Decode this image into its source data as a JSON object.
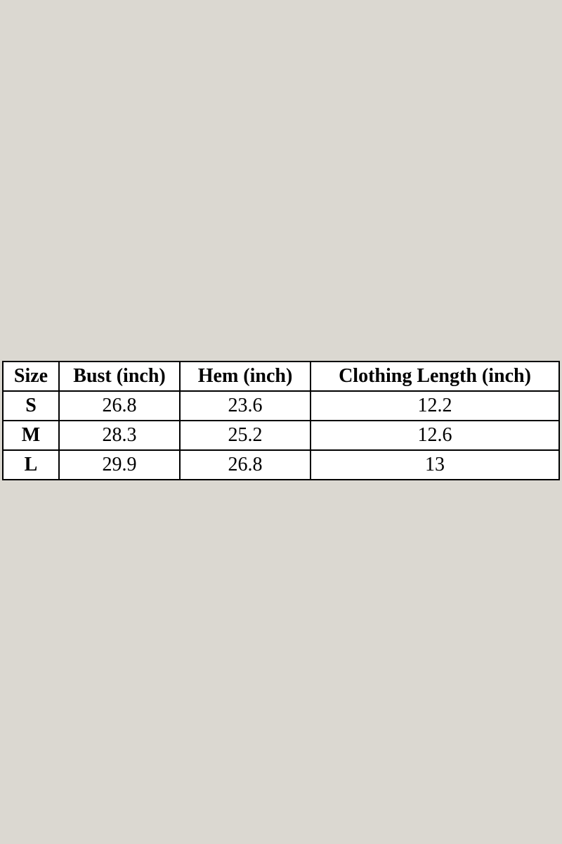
{
  "page": {
    "background_color": "#dbd8d1",
    "table_background": "#ffffff",
    "border_color": "#000000",
    "text_color": "#000000"
  },
  "chart_data": {
    "type": "table",
    "title": "",
    "columns": [
      "Size",
      "Bust (inch)",
      "Hem (inch)",
      "Clothing Length (inch)"
    ],
    "rows": [
      [
        "S",
        "26.8",
        "23.6",
        "12.2"
      ],
      [
        "M",
        "28.3",
        "25.2",
        "12.6"
      ],
      [
        "L",
        "29.9",
        "26.8",
        "13"
      ]
    ]
  }
}
